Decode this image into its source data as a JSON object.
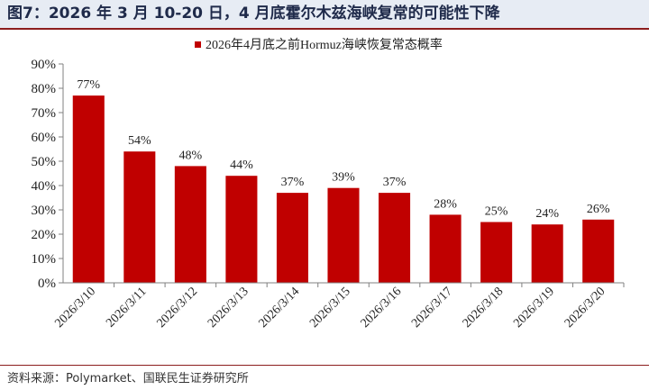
{
  "figure": {
    "title": "图7：2026 年 3 月 10-20 日，4 月底霍尔木兹海峡复常的可能性下降",
    "source": "资料来源：Polymarket、国联民生证券研究所"
  },
  "colors": {
    "bar": "#c00000",
    "title_bg": "#e7ecf4",
    "rule": "#8c1d1d"
  },
  "chart_data": {
    "type": "bar",
    "categories": [
      "2026/3/10",
      "2026/3/11",
      "2026/3/12",
      "2026/3/13",
      "2026/3/14",
      "2026/3/15",
      "2026/3/16",
      "2026/3/17",
      "2026/3/18",
      "2026/3/19",
      "2026/3/20"
    ],
    "series": [
      {
        "name": "2026年4月底之前Hormuz海峡恢复常态概率",
        "values": [
          77,
          54,
          48,
          44,
          37,
          39,
          37,
          28,
          25,
          24,
          26
        ]
      }
    ],
    "data_labels": [
      "77%",
      "54%",
      "48%",
      "44%",
      "37%",
      "39%",
      "37%",
      "28%",
      "25%",
      "24%",
      "26%"
    ],
    "yticks": [
      "0%",
      "10%",
      "20%",
      "30%",
      "40%",
      "50%",
      "60%",
      "70%",
      "80%",
      "90%"
    ],
    "ylim": [
      0,
      90
    ],
    "ytick_step": 10,
    "grid": false,
    "legend_position": "top-center"
  }
}
